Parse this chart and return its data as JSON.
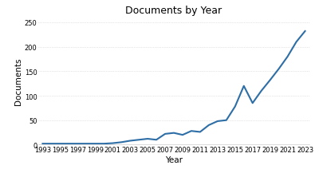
{
  "years": [
    1993,
    1994,
    1995,
    1996,
    1997,
    1998,
    1999,
    2000,
    2001,
    2002,
    2003,
    2004,
    2005,
    2006,
    2007,
    2008,
    2009,
    2010,
    2011,
    2012,
    2013,
    2014,
    2015,
    2016,
    2017,
    2018,
    2019,
    2020,
    2021,
    2022,
    2023
  ],
  "documents": [
    2,
    2,
    2,
    2,
    2,
    2,
    2,
    2,
    3,
    5,
    8,
    10,
    12,
    10,
    22,
    24,
    20,
    28,
    26,
    40,
    48,
    50,
    78,
    120,
    85,
    110,
    132,
    155,
    180,
    210,
    232
  ],
  "line_color": "#2E6EA6",
  "title": "Documents by Year",
  "xlabel": "Year",
  "ylabel": "Documents",
  "ylim": [
    0,
    260
  ],
  "yticks": [
    0,
    50,
    100,
    150,
    200,
    250
  ],
  "xtick_labels": [
    "1993",
    "1995",
    "1997",
    "1999",
    "2001",
    "2003",
    "2005",
    "2007",
    "2009",
    "2011",
    "2013",
    "2015",
    "2017",
    "2019",
    "2021",
    "2023"
  ],
  "xtick_positions": [
    1993,
    1995,
    1997,
    1999,
    2001,
    2003,
    2005,
    2007,
    2009,
    2011,
    2013,
    2015,
    2017,
    2019,
    2021,
    2023
  ],
  "title_fontsize": 9,
  "label_fontsize": 7.5,
  "tick_fontsize": 6,
  "line_width": 1.5,
  "background_color": "#ffffff",
  "xlim": [
    1992.5,
    2023.5
  ]
}
